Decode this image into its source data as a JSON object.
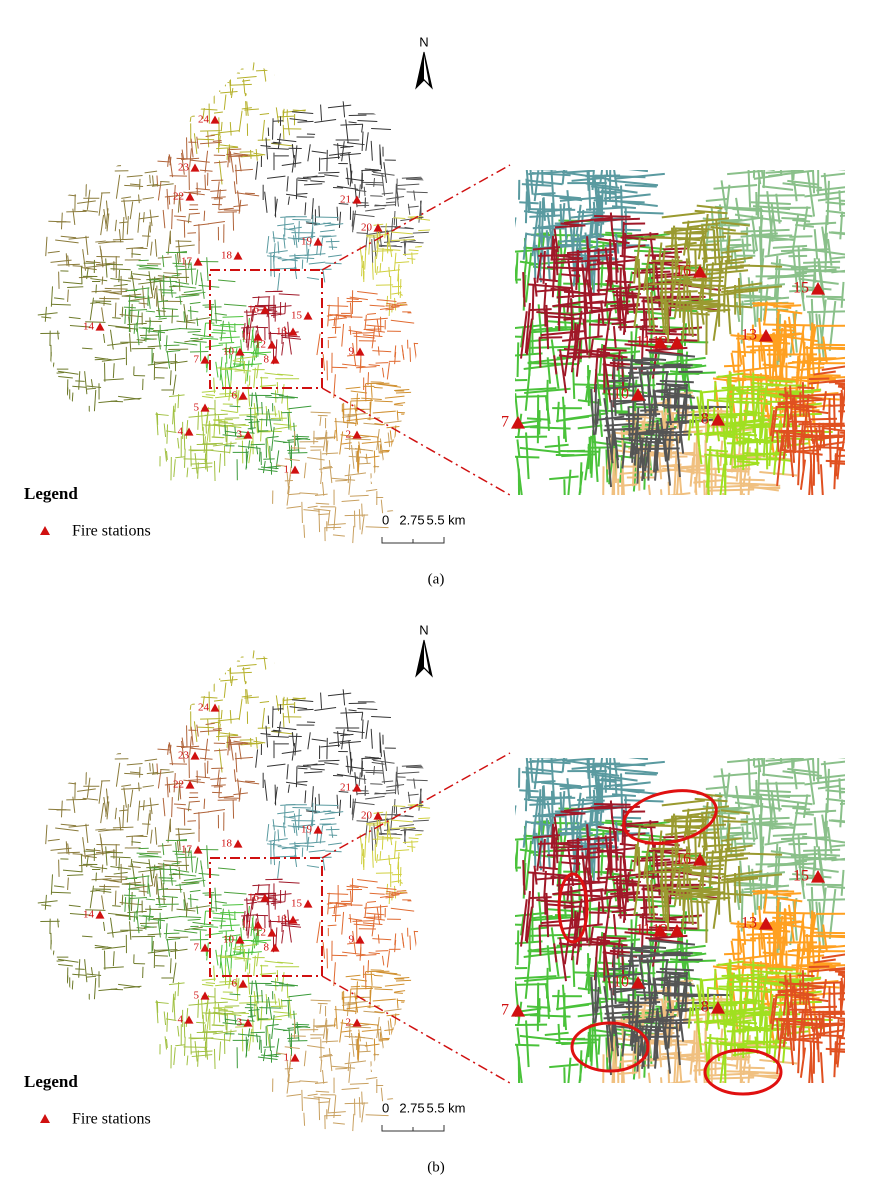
{
  "panels": [
    {
      "north": "N",
      "stations": [
        "1",
        "2",
        "3",
        "4",
        "5",
        "6",
        "7",
        "8",
        "9",
        "10",
        "11",
        "12",
        "13",
        "14",
        "15",
        "16",
        "17",
        "18",
        "19",
        "20",
        "21",
        "22",
        "23",
        "24"
      ],
      "inset_stations": [
        "16",
        "15",
        "13",
        "11",
        "12",
        "10",
        "8",
        "7"
      ],
      "legend": {
        "title": "Legend",
        "item": "Fire stations"
      },
      "scale": [
        "0",
        "2.75",
        "5.5 km"
      ],
      "caption": "(a)"
    },
    {
      "north": "N",
      "stations": [
        "1",
        "2",
        "3",
        "4",
        "5",
        "6",
        "7",
        "8",
        "9",
        "10",
        "11",
        "12",
        "13",
        "14",
        "15",
        "16",
        "17",
        "18",
        "19",
        "20",
        "21",
        "22",
        "23",
        "24"
      ],
      "inset_stations": [
        "16",
        "15",
        "13",
        "11",
        "12",
        "10",
        "8",
        "7"
      ],
      "legend": {
        "title": "Legend",
        "item": "Fire stations"
      },
      "scale": [
        "0",
        "2.75",
        "5.5 km"
      ],
      "caption": "(b)"
    }
  ]
}
